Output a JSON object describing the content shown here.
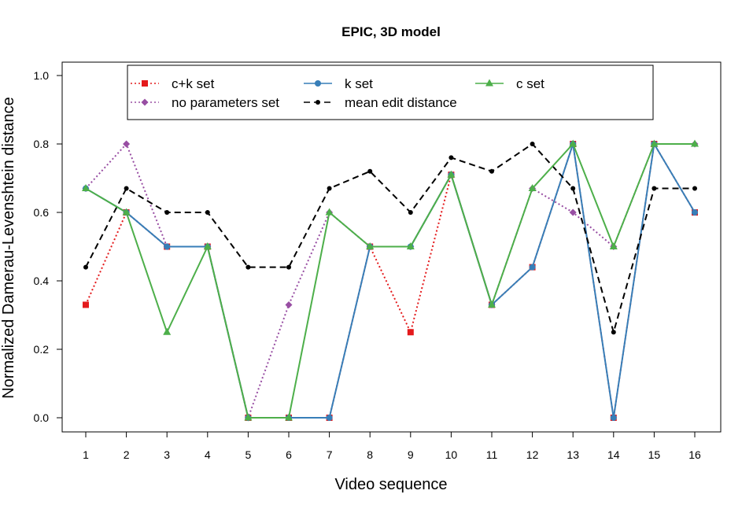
{
  "chart_data": {
    "type": "line",
    "title": "EPIC, 3D model",
    "xlabel": "Video sequence",
    "ylabel": "Normalized Damerau-Levenshtein distance",
    "categories": [
      "1",
      "2",
      "3",
      "4",
      "5",
      "6",
      "7",
      "8",
      "9",
      "10",
      "11",
      "12",
      "13",
      "14",
      "15",
      "16"
    ],
    "yticks": [
      "0.0",
      "0.2",
      "0.4",
      "0.6",
      "0.8",
      "1.0"
    ],
    "ylim": [
      0,
      1.0
    ],
    "legend_position": "top",
    "series": [
      {
        "name": "c+k set",
        "color": "#e41a1c",
        "dash": "dotted",
        "marker": "square",
        "values": [
          0.33,
          0.6,
          0.5,
          0.5,
          0.0,
          0.0,
          0.0,
          0.5,
          0.25,
          0.71,
          0.33,
          0.44,
          0.8,
          0.0,
          0.8,
          0.6
        ]
      },
      {
        "name": "no parameters set",
        "color": "#984ea3",
        "dash": "dotted",
        "marker": "diamond",
        "values": [
          0.67,
          0.8,
          0.5,
          0.5,
          0.0,
          0.33,
          0.6,
          0.5,
          0.5,
          0.71,
          0.33,
          0.67,
          0.6,
          0.5,
          0.8,
          0.8
        ]
      },
      {
        "name": "k set",
        "color": "#377eb8",
        "dash": "solid",
        "marker": "circle",
        "values": [
          0.67,
          0.6,
          0.5,
          0.5,
          0.0,
          0.0,
          0.0,
          0.5,
          0.5,
          0.71,
          0.33,
          0.44,
          0.8,
          0.0,
          0.8,
          0.6
        ]
      },
      {
        "name": "mean edit distance",
        "color": "#000000",
        "dash": "dashed",
        "marker": "dot",
        "values": [
          0.44,
          0.67,
          0.6,
          0.6,
          0.44,
          0.44,
          0.67,
          0.72,
          0.6,
          0.76,
          0.72,
          0.8,
          0.67,
          0.25,
          0.67,
          0.67
        ]
      },
      {
        "name": "c set",
        "color": "#4daf4a",
        "dash": "solid",
        "marker": "triangle",
        "values": [
          0.67,
          0.6,
          0.25,
          0.5,
          0.0,
          0.0,
          0.6,
          0.5,
          0.5,
          0.71,
          0.33,
          0.67,
          0.8,
          0.5,
          0.8,
          0.8
        ]
      }
    ]
  }
}
